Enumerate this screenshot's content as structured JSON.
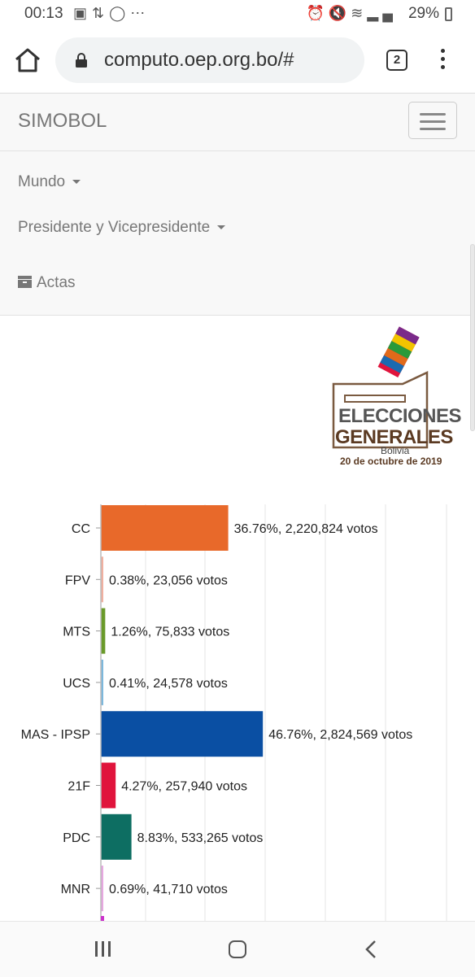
{
  "status_bar": {
    "time": "00:13",
    "left_icons": [
      "gallery-icon",
      "retweet-icon",
      "instagram-icon",
      "more-dots-icon"
    ],
    "right_icons": [
      "alarm-icon",
      "mute-icon",
      "wifi-icon",
      "signal-icon",
      "signal-icon"
    ],
    "battery": "29%"
  },
  "browser": {
    "url": "computo.oep.org.bo/#",
    "tab_count": "2"
  },
  "navbar": {
    "brand": "SIMOBOL",
    "items": [
      {
        "label": "Mundo",
        "dropdown": true
      },
      {
        "label": "Presidente y Vicepresidente",
        "dropdown": true
      },
      {
        "label": "Actas",
        "icon": "archive-icon"
      }
    ]
  },
  "logo": {
    "line1": "ELECCIONES",
    "line2": "GENERALES",
    "line3": "Bolivia",
    "line4": "20 de octubre de 2019"
  },
  "chart_data": {
    "type": "bar",
    "orientation": "horizontal",
    "title": "",
    "xlabel": "",
    "ylabel": "",
    "xlim": [
      0,
      100
    ],
    "grid": true,
    "value_suffix": "votos",
    "categories": [
      "CC",
      "FPV",
      "MTS",
      "UCS",
      "MAS - IPSP",
      "21F",
      "PDC",
      "MNR"
    ],
    "series": [
      {
        "values": [
          36.76,
          0.38,
          1.26,
          0.41,
          46.76,
          4.27,
          8.83,
          0.69
        ],
        "votes": [
          "2,220,824",
          "23,056",
          "75,833",
          "24,578",
          "2,824,569",
          "257,940",
          "533,265",
          "41,710"
        ],
        "colors": [
          "#e8692a",
          "#f0b0a0",
          "#6a9a2a",
          "#7db8dc",
          "#0a4fa3",
          "#e0143c",
          "#0d6e62",
          "#e6a8e0"
        ]
      }
    ]
  }
}
